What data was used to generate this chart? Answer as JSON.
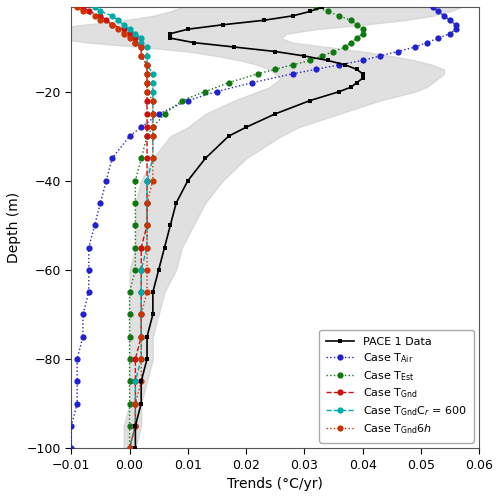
{
  "xlabel": "Trends (°C/yr)",
  "ylabel": "Depth (m)",
  "xlim": [
    -0.01,
    0.06
  ],
  "ylim": [
    -100,
    -1
  ],
  "pace_color": "#000000",
  "t_air_color": "#2222cc",
  "t_est_color": "#117711",
  "t_gnd_color": "#cc1111",
  "t_gnd_cr_color": "#00aaaa",
  "t_gnd_6h_color": "#cc3300",
  "shade_color": "#cccccc",
  "shade_alpha": 0.6,
  "pace_depths": [
    -1,
    -2,
    -3,
    -4,
    -5,
    -6,
    -7,
    -8,
    -9,
    -10,
    -11,
    -12,
    -13,
    -14,
    -15,
    -16,
    -17,
    -18,
    -19,
    -20,
    -22,
    -25,
    -28,
    -30,
    -35,
    -40,
    -45,
    -50,
    -55,
    -60,
    -65,
    -70,
    -75,
    -80,
    -85,
    -90,
    -95,
    -100
  ],
  "pace_trends": [
    0.033,
    0.031,
    0.028,
    0.023,
    0.016,
    0.01,
    0.007,
    0.007,
    0.011,
    0.018,
    0.025,
    0.03,
    0.034,
    0.037,
    0.039,
    0.04,
    0.04,
    0.039,
    0.038,
    0.036,
    0.031,
    0.025,
    0.02,
    0.017,
    0.013,
    0.01,
    0.008,
    0.007,
    0.006,
    0.005,
    0.004,
    0.004,
    0.003,
    0.003,
    0.002,
    0.002,
    0.001,
    0.001
  ],
  "pace_upper": [
    0.057,
    0.055,
    0.052,
    0.047,
    0.04,
    0.032,
    0.027,
    0.026,
    0.028,
    0.034,
    0.04,
    0.045,
    0.049,
    0.052,
    0.054,
    0.054,
    0.053,
    0.052,
    0.051,
    0.049,
    0.043,
    0.036,
    0.029,
    0.026,
    0.02,
    0.016,
    0.013,
    0.011,
    0.009,
    0.008,
    0.006,
    0.005,
    0.004,
    0.004,
    0.003,
    0.002,
    0.002,
    0.001
  ],
  "pace_lower": [
    0.009,
    0.007,
    0.004,
    -0.001,
    -0.008,
    -0.014,
    -0.015,
    -0.013,
    -0.007,
    0.002,
    0.01,
    0.015,
    0.019,
    0.022,
    0.024,
    0.025,
    0.026,
    0.025,
    0.024,
    0.022,
    0.018,
    0.013,
    0.01,
    0.007,
    0.004,
    0.002,
    0.001,
    0.001,
    0.001,
    0.0,
    0.0,
    0.0,
    0.0,
    0.0,
    0.0,
    0.0,
    -0.001,
    -0.001
  ],
  "t_air_depths": [
    -1,
    -2,
    -3,
    -4,
    -5,
    -6,
    -7,
    -8,
    -9,
    -10,
    -11,
    -12,
    -13,
    -14,
    -15,
    -16,
    -18,
    -20,
    -22,
    -25,
    -28,
    -30,
    -35,
    -40,
    -45,
    -50,
    -55,
    -60,
    -65,
    -70,
    -75,
    -80,
    -85,
    -90,
    -95,
    -100
  ],
  "t_air_trends": [
    0.052,
    0.053,
    0.054,
    0.055,
    0.056,
    0.056,
    0.055,
    0.053,
    0.051,
    0.049,
    0.046,
    0.043,
    0.04,
    0.036,
    0.032,
    0.028,
    0.021,
    0.015,
    0.01,
    0.005,
    0.002,
    0.0,
    -0.003,
    -0.004,
    -0.005,
    -0.006,
    -0.007,
    -0.007,
    -0.007,
    -0.008,
    -0.008,
    -0.009,
    -0.009,
    -0.009,
    -0.01,
    -0.01
  ],
  "t_est_depths": [
    -1,
    -2,
    -3,
    -4,
    -5,
    -6,
    -7,
    -8,
    -9,
    -10,
    -11,
    -12,
    -13,
    -14,
    -15,
    -16,
    -18,
    -20,
    -22,
    -25,
    -28,
    -30,
    -35,
    -40,
    -45,
    -50,
    -55,
    -60,
    -65,
    -70,
    -75,
    -80,
    -85,
    -90,
    -95,
    -100
  ],
  "t_est_trends": [
    0.032,
    0.034,
    0.036,
    0.038,
    0.039,
    0.04,
    0.04,
    0.039,
    0.038,
    0.037,
    0.035,
    0.033,
    0.031,
    0.028,
    0.025,
    0.022,
    0.017,
    0.013,
    0.009,
    0.006,
    0.004,
    0.003,
    0.002,
    0.001,
    0.001,
    0.001,
    0.001,
    0.001,
    0.0,
    0.0,
    0.0,
    0.0,
    0.0,
    0.0,
    0.0,
    0.0
  ],
  "t_gnd_depths": [
    -1,
    -2,
    -3,
    -4,
    -5,
    -6,
    -7,
    -8,
    -9,
    -10,
    -12,
    -14,
    -16,
    -18,
    -20,
    -22,
    -25,
    -28,
    -30,
    -35,
    -40,
    -45,
    -50,
    -55,
    -60,
    -65,
    -70,
    -75,
    -80,
    -85,
    -90,
    -95,
    -100
  ],
  "t_gnd_trends": [
    -0.008,
    -0.007,
    -0.005,
    -0.004,
    -0.003,
    -0.001,
    0.0,
    0.001,
    0.001,
    0.002,
    0.002,
    0.003,
    0.003,
    0.003,
    0.003,
    0.003,
    0.003,
    0.003,
    0.003,
    0.003,
    0.003,
    0.003,
    0.003,
    0.002,
    0.002,
    0.002,
    0.002,
    0.002,
    0.001,
    0.001,
    0.001,
    0.001,
    0.0
  ],
  "t_gnd_cr_depths": [
    -1,
    -2,
    -3,
    -4,
    -5,
    -6,
    -7,
    -8,
    -9,
    -10,
    -12,
    -14,
    -16,
    -18,
    -20,
    -22,
    -25,
    -28,
    -30,
    -35,
    -40,
    -45,
    -50,
    -55,
    -60,
    -65,
    -70,
    -75,
    -80,
    -85,
    -90,
    -95,
    -100
  ],
  "t_gnd_cr_trends": [
    -0.006,
    -0.005,
    -0.003,
    -0.002,
    -0.001,
    0.0,
    0.001,
    0.002,
    0.002,
    0.003,
    0.003,
    0.003,
    0.004,
    0.004,
    0.004,
    0.004,
    0.004,
    0.004,
    0.004,
    0.004,
    0.003,
    0.003,
    0.003,
    0.003,
    0.002,
    0.002,
    0.002,
    0.002,
    0.002,
    0.001,
    0.001,
    0.001,
    0.0
  ],
  "t_gnd_6h_depths": [
    -1,
    -2,
    -3,
    -4,
    -5,
    -6,
    -7,
    -8,
    -9,
    -10,
    -12,
    -14,
    -16,
    -18,
    -20,
    -22,
    -25,
    -28,
    -30,
    -35,
    -40,
    -45,
    -50,
    -55,
    -60,
    -65,
    -70,
    -75,
    -80,
    -85,
    -90,
    -95,
    -100
  ],
  "t_gnd_6h_trends": [
    -0.009,
    -0.008,
    -0.006,
    -0.005,
    -0.003,
    -0.002,
    -0.001,
    0.0,
    0.001,
    0.002,
    0.002,
    0.003,
    0.003,
    0.003,
    0.003,
    0.004,
    0.004,
    0.004,
    0.004,
    0.004,
    0.004,
    0.003,
    0.003,
    0.003,
    0.003,
    0.003,
    0.002,
    0.002,
    0.002,
    0.002,
    0.001,
    0.001,
    0.0
  ],
  "figsize": [
    5.0,
    4.98
  ],
  "dpi": 100
}
